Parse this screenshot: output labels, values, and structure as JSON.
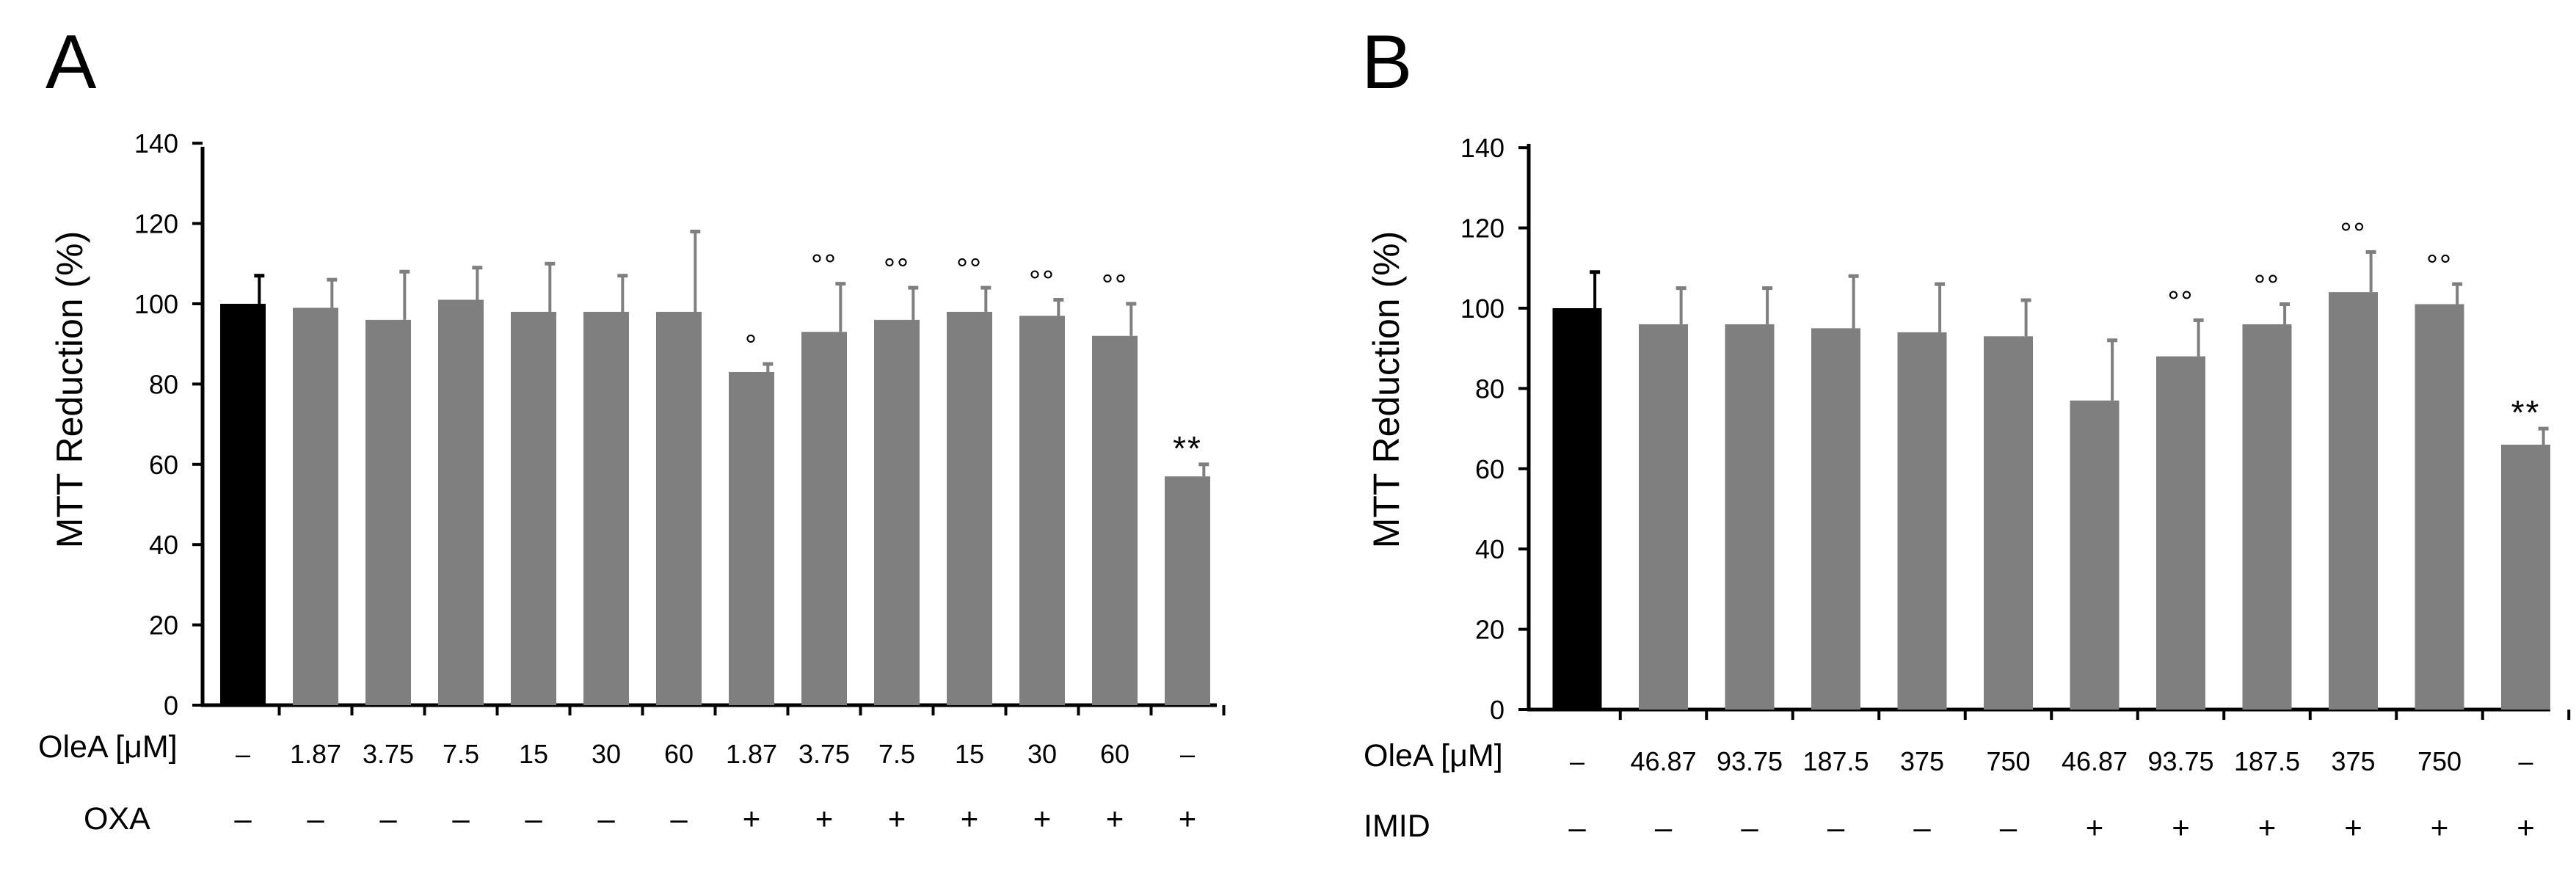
{
  "chart_data": [
    {
      "panel_label": "A",
      "type": "bar",
      "title": "",
      "xlabel": "",
      "ylabel": "MTT Reduction (%)",
      "ylim": [
        0,
        140
      ],
      "yticks": [
        "0",
        "20",
        "40",
        "60",
        "80",
        "100",
        "120",
        "140"
      ],
      "grid": false,
      "colors": {
        "control": "#000000",
        "treated": "#7f7f7f"
      },
      "values": [
        100,
        99,
        96,
        101,
        98,
        98,
        98,
        83,
        93,
        96,
        98,
        97,
        92,
        57
      ],
      "errors": [
        7,
        7,
        12,
        8,
        12,
        9,
        20,
        2,
        12,
        8,
        6,
        4,
        8,
        3
      ],
      "bar_colors": [
        "control",
        "treated",
        "treated",
        "treated",
        "treated",
        "treated",
        "treated",
        "treated",
        "treated",
        "treated",
        "treated",
        "treated",
        "treated",
        "treated"
      ],
      "annotations": [
        "",
        "",
        "",
        "",
        "",
        "",
        "",
        "°",
        "°°",
        "°°",
        "°°",
        "°°",
        "°°",
        "**"
      ],
      "row1_label": "OleA [μM]",
      "row1": [
        "–",
        "1.87",
        "3.75",
        "7.5",
        "15",
        "30",
        "60",
        "1.87",
        "3.75",
        "7.5",
        "15",
        "30",
        "60",
        "–"
      ],
      "row2_label": "OXA",
      "row2": [
        "–",
        "–",
        "–",
        "–",
        "–",
        "–",
        "–",
        "+",
        "+",
        "+",
        "+",
        "+",
        "+",
        "+"
      ]
    },
    {
      "panel_label": "B",
      "type": "bar",
      "title": "",
      "xlabel": "",
      "ylabel": "MTT Reduction (%)",
      "ylim": [
        0,
        140
      ],
      "yticks": [
        "0",
        "20",
        "40",
        "60",
        "80",
        "100",
        "120",
        "140"
      ],
      "grid": false,
      "colors": {
        "control": "#000000",
        "treated": "#7f7f7f"
      },
      "values": [
        100,
        96,
        96,
        95,
        94,
        93,
        77,
        88,
        96,
        104,
        101,
        66
      ],
      "errors": [
        9,
        9,
        9,
        13,
        12,
        9,
        15,
        9,
        5,
        10,
        5,
        4
      ],
      "bar_colors": [
        "control",
        "treated",
        "treated",
        "treated",
        "treated",
        "treated",
        "treated",
        "treated",
        "treated",
        "treated",
        "treated",
        "treated"
      ],
      "annotations": [
        "",
        "",
        "",
        "",
        "",
        "",
        "",
        "°°",
        "°°",
        "°°",
        "°°",
        "**"
      ],
      "row1_label": "OleA [μM]",
      "row1": [
        "–",
        "46.87",
        "93.75",
        "187.5",
        "375",
        "750",
        "46.87",
        "93.75",
        "187.5",
        "375",
        "750",
        "–"
      ],
      "row2_label": "IMID",
      "row2": [
        "–",
        "–",
        "–",
        "–",
        "–",
        "–",
        "+",
        "+",
        "+",
        "+",
        "+",
        "+"
      ]
    }
  ]
}
